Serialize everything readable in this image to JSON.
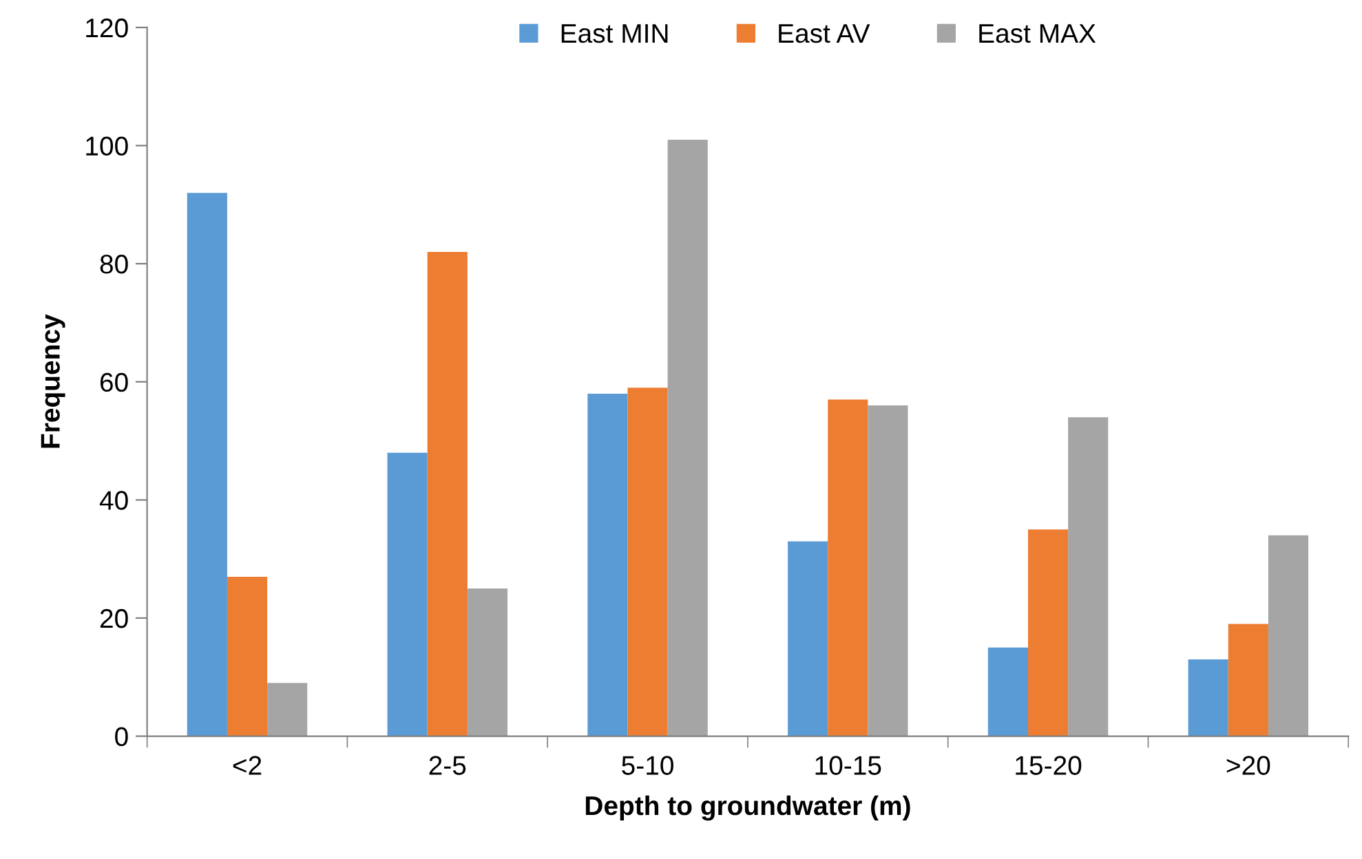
{
  "chart_data": {
    "type": "bar",
    "xlabel": "Depth to groundwater (m)",
    "ylabel": "Frequency",
    "categories": [
      "<2",
      "2-5",
      "5-10",
      "10-15",
      "15-20",
      ">20"
    ],
    "series": [
      {
        "name": "East MIN",
        "color": "#5b9bd5",
        "values": [
          92,
          48,
          58,
          33,
          15,
          13
        ]
      },
      {
        "name": "East AV",
        "color": "#ed7d31",
        "values": [
          27,
          82,
          59,
          57,
          35,
          19
        ]
      },
      {
        "name": "East MAX",
        "color": "#a5a5a5",
        "values": [
          9,
          25,
          101,
          56,
          54,
          34
        ]
      }
    ],
    "ylim": [
      0,
      120
    ],
    "yticks": [
      0,
      20,
      40,
      60,
      80,
      100,
      120
    ],
    "grid": false,
    "legend": "top"
  }
}
